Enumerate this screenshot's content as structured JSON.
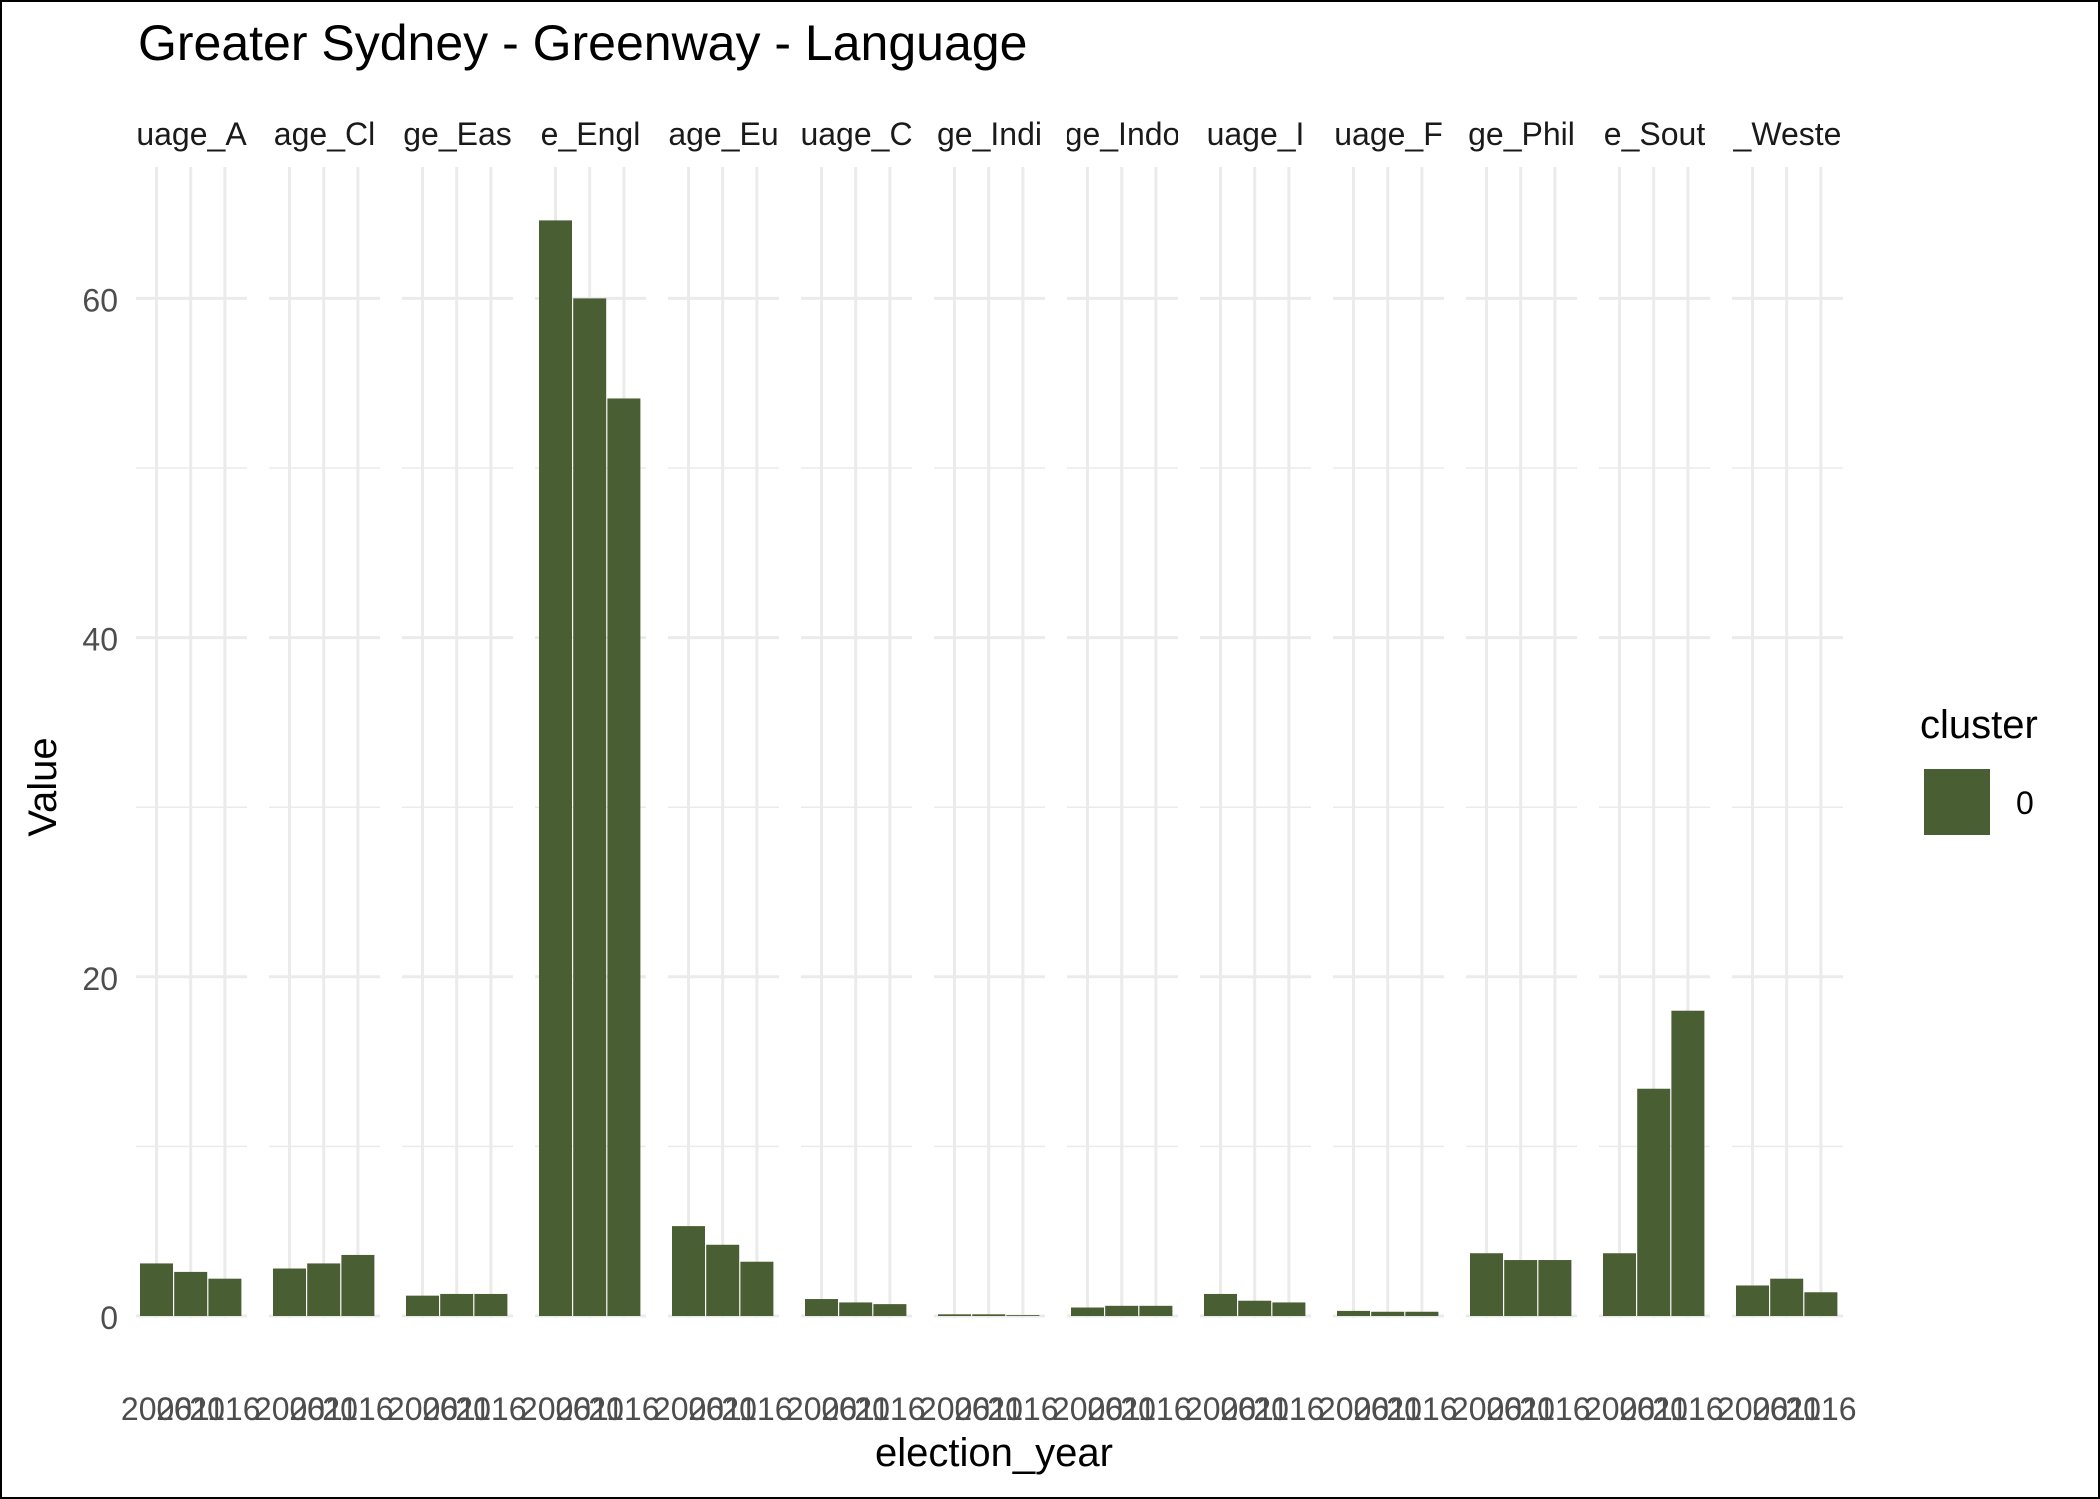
{
  "chart_data": {
    "type": "bar",
    "title": "Greater Sydney - Greenway - Language",
    "xlabel": "election_year",
    "ylabel": "Value",
    "ylim": [
      0,
      67
    ],
    "y_ticks": [
      0,
      20,
      40,
      60
    ],
    "grid": true,
    "bar_color": "#4a5e33",
    "panel_grid_color": "#ebebeb",
    "x_tick_labels": [
      "2006",
      "2011",
      "2016"
    ],
    "legend": {
      "title": "cluster",
      "placement": "right",
      "entries": [
        "0"
      ]
    },
    "facets": [
      {
        "label": "uage_A",
        "values": [
          3.1,
          2.6,
          2.2
        ]
      },
      {
        "label": "age_Cl",
        "values": [
          2.8,
          3.1,
          3.6
        ]
      },
      {
        "label": "ge_Eas",
        "values": [
          1.2,
          1.3,
          1.3
        ]
      },
      {
        "label": "e_Engl",
        "values": [
          64.6,
          60.0,
          54.1
        ]
      },
      {
        "label": "age_Eu",
        "values": [
          5.3,
          4.2,
          3.2
        ]
      },
      {
        "label": "uage_C",
        "values": [
          1.0,
          0.8,
          0.7
        ]
      },
      {
        "label": "ge_Indi",
        "values": [
          0.1,
          0.1,
          0.05
        ]
      },
      {
        "label": "ge_Indo",
        "values": [
          0.5,
          0.6,
          0.6
        ]
      },
      {
        "label": "uage_I",
        "values": [
          1.3,
          0.9,
          0.8
        ]
      },
      {
        "label": "uage_F",
        "values": [
          0.3,
          0.25,
          0.25
        ]
      },
      {
        "label": "ge_Phil",
        "values": [
          3.7,
          3.3,
          3.3
        ]
      },
      {
        "label": "e_Sout",
        "values": [
          3.7,
          13.4,
          18.0
        ]
      },
      {
        "label": "_Weste",
        "values": [
          1.8,
          2.2,
          1.4
        ]
      }
    ]
  }
}
